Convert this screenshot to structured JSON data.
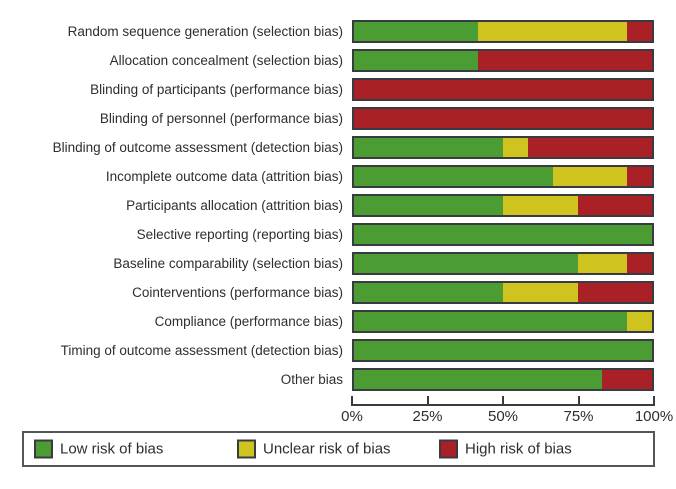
{
  "chart_data": {
    "type": "bar",
    "stacked": true,
    "orientation": "horizontal",
    "title": "",
    "xlabel": "",
    "ylabel": "",
    "categories": [
      "Random sequence generation (selection bias)",
      "Allocation concealment (selection bias)",
      "Blinding of participants (performance bias)",
      "Blinding of personnel (performance bias)",
      "Blinding of outcome assessment (detection bias)",
      "Incomplete outcome data (attrition bias)",
      "Participants allocation (attrition bias)",
      "Selective reporting (reporting bias)",
      "Baseline comparability (selection bias)",
      "Cointerventions (performance bias)",
      "Compliance (performance bias)",
      "Timing of outcome assessment (detection bias)",
      "Other bias"
    ],
    "series": [
      {
        "name": "Low risk of bias",
        "color": "#4a9c33",
        "values": [
          41.7,
          41.7,
          0,
          0,
          50,
          66.7,
          50,
          100,
          75,
          50,
          91.7,
          100,
          83.3
        ]
      },
      {
        "name": "Unclear risk of bias",
        "color": "#cfc41f",
        "values": [
          50,
          0,
          0,
          0,
          8.3,
          25,
          25,
          0,
          16.7,
          25,
          8.3,
          0,
          0
        ]
      },
      {
        "name": "High risk of bias",
        "color": "#a92026",
        "values": [
          8.3,
          58.3,
          100,
          100,
          41.7,
          8.3,
          25,
          0,
          8.3,
          25,
          0,
          0,
          16.7
        ]
      }
    ],
    "x_axis": {
      "range": [
        0,
        100
      ],
      "tick_labels": [
        "0%",
        "25%",
        "50%",
        "75%",
        "100%"
      ]
    },
    "legend": {
      "position": "bottom",
      "entries": [
        "Low risk of bias",
        "Unclear risk of bias",
        "High risk of bias"
      ]
    },
    "grid": false
  },
  "style": {
    "bar_border_color": "#3a3b40",
    "axis_color": "#3a3b40",
    "text_color": "#2e2e2e",
    "low_risk_color": "#4a9c33",
    "unclear_risk_color": "#cfc41f",
    "high_risk_color": "#a92026"
  }
}
